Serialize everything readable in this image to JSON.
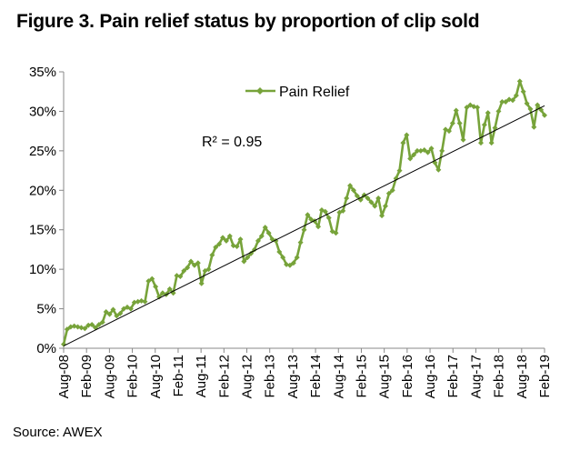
{
  "title": "Figure 3. Pain relief status by proportion of clip sold",
  "source": "Source: AWEX",
  "chart_data": {
    "type": "line",
    "series": [
      {
        "name": "Pain Relief",
        "color": "#77a33a",
        "marker": "diamond",
        "values": [
          0.5,
          2.4,
          2.7,
          2.8,
          2.7,
          2.6,
          2.5,
          2.9,
          3.0,
          2.6,
          3.0,
          3.3,
          4.6,
          4.3,
          4.9,
          4.1,
          4.4,
          5.0,
          5.2,
          5.0,
          5.8,
          5.9,
          6.0,
          5.9,
          8.5,
          8.8,
          7.8,
          6.5,
          7.0,
          6.8,
          7.5,
          7.0,
          9.2,
          9.1,
          9.8,
          10.2,
          11.0,
          10.5,
          10.8,
          8.2,
          9.8,
          10.0,
          11.8,
          12.8,
          13.2,
          14.0,
          13.6,
          14.2,
          13.0,
          12.9,
          13.8,
          11.0,
          11.5,
          12.0,
          12.5,
          13.6,
          14.2,
          15.3,
          14.6,
          13.8,
          13.6,
          12.2,
          11.5,
          10.6,
          10.5,
          10.8,
          11.5,
          13.4,
          15.0,
          16.9,
          16.3,
          16.1,
          15.4,
          17.5,
          17.3,
          16.5,
          14.8,
          14.6,
          17.2,
          17.4,
          19.0,
          20.6,
          20.0,
          19.3,
          18.8,
          19.4,
          19.0,
          18.5,
          18.0,
          19.0,
          16.8,
          18.0,
          19.6,
          20.0,
          21.5,
          22.5,
          26.0,
          27.0,
          24.0,
          24.5,
          25.0,
          25.0,
          25.1,
          24.8,
          25.3,
          23.5,
          22.6,
          25.0,
          27.7,
          27.5,
          28.5,
          30.1,
          28.5,
          26.4,
          30.5,
          30.8,
          30.6,
          30.5,
          26.0,
          28.3,
          29.8,
          26.0,
          27.9,
          30.0,
          31.2,
          31.2,
          31.5,
          31.4,
          32.0,
          33.8,
          32.5,
          31.0,
          30.3,
          28.0,
          30.8,
          30.2,
          29.5
        ]
      }
    ],
    "x_tick_labels": [
      "Aug-08",
      "Feb-09",
      "Aug-09",
      "Feb-10",
      "Aug-10",
      "Feb-11",
      "Aug-11",
      "Feb-12",
      "Aug-12",
      "Feb-13",
      "Aug-13",
      "Feb-14",
      "Aug-14",
      "Feb-15",
      "Aug-15",
      "Feb-16",
      "Aug-16",
      "Feb-17",
      "Aug-17",
      "Feb-18",
      "Aug-18",
      "Feb-19"
    ],
    "x_range": [
      "Aug-08",
      "Feb-19"
    ],
    "y_tick_labels": [
      "0%",
      "5%",
      "10%",
      "15%",
      "20%",
      "25%",
      "30%",
      "35%"
    ],
    "ylim": [
      0,
      35
    ],
    "y_unit": "%",
    "trendline": {
      "type": "linear",
      "color": "#000000",
      "start": 0.3,
      "end": 30.7
    },
    "annotation": "R² = 0.95",
    "legend": {
      "position": "top-center"
    },
    "grid": false
  }
}
